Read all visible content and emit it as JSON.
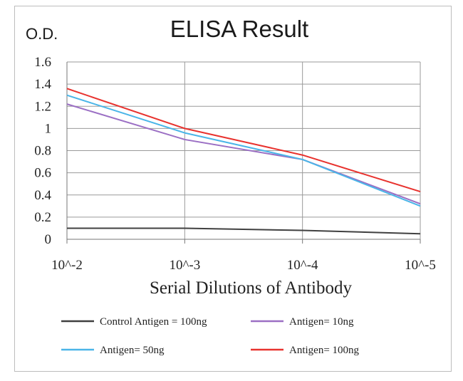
{
  "chart_data": {
    "type": "line",
    "title": "ELISA Result",
    "ylabel": "O.D.",
    "xlabel": "Serial Dilutions  of Antibody",
    "categories": [
      "10^-2",
      "10^-3",
      "10^-4",
      "10^-5"
    ],
    "ylim": [
      0,
      1.6
    ],
    "yticks": [
      "0",
      "0.2",
      "0.4",
      "0.6",
      "0.8",
      "1",
      "1.2",
      "1.4",
      "1.6"
    ],
    "grid": true,
    "legend_position": "bottom",
    "series": [
      {
        "name": "Control Antigen = 100ng",
        "color": "#404040",
        "values": [
          0.1,
          0.1,
          0.08,
          0.05
        ]
      },
      {
        "name": "Antigen= 10ng",
        "color": "#9b6fc4",
        "values": [
          1.22,
          0.9,
          0.72,
          0.32
        ]
      },
      {
        "name": "Antigen= 50ng",
        "color": "#4ab5e8",
        "values": [
          1.3,
          0.96,
          0.72,
          0.3
        ]
      },
      {
        "name": "Antigen= 100ng",
        "color": "#e8322e",
        "values": [
          1.36,
          1.0,
          0.76,
          0.43
        ]
      }
    ]
  }
}
